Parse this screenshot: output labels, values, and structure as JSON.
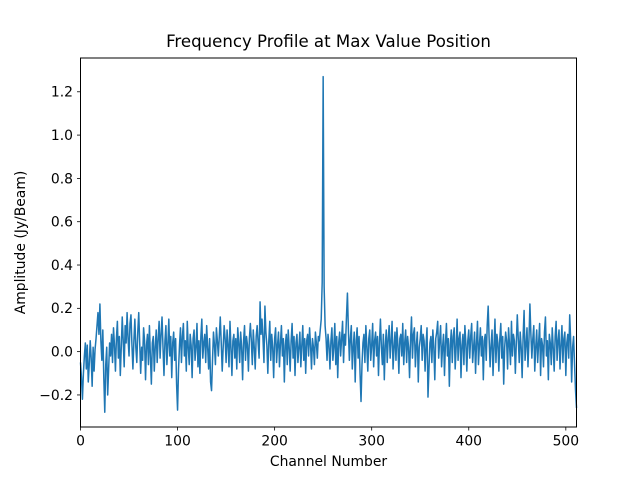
{
  "figure": {
    "background": "#ffffff",
    "spine_color": "#000000",
    "text_color": "#000000"
  },
  "chart_data": {
    "type": "line",
    "title": "Frequency Profile at Max Value Position",
    "xlabel": "Channel Number",
    "ylabel": "Amplitude (Jy/Beam)",
    "xlim": [
      0,
      511
    ],
    "ylim": [
      -0.348,
      1.356
    ],
    "xticks": [
      0,
      100,
      200,
      300,
      400,
      500
    ],
    "xtick_labels": [
      "0",
      "100",
      "200",
      "300",
      "400",
      "500"
    ],
    "yticks": [
      -0.2,
      0.0,
      0.2,
      0.4,
      0.6,
      0.8,
      1.0,
      1.2
    ],
    "ytick_labels": [
      "−0.2",
      "0.0",
      "0.2",
      "0.4",
      "0.6",
      "0.8",
      "1.0",
      "1.2"
    ],
    "grid": false,
    "legend": null,
    "line_color": "#1f77b4",
    "line_width": 1.5,
    "x_start": 0,
    "x_step": 1,
    "peak": {
      "x": 250,
      "y": 1.27
    },
    "values": [
      -0.05,
      -0.12,
      -0.22,
      -0.1,
      -0.02,
      0.04,
      -0.08,
      0.03,
      -0.14,
      -0.06,
      0.05,
      -0.03,
      -0.16,
      0.02,
      -0.09,
      0.01,
      0.06,
      0.12,
      0.18,
      0.08,
      0.22,
      0.05,
      -0.04,
      0.1,
      -0.12,
      -0.28,
      -0.06,
      0.02,
      -0.2,
      -0.08,
      0.04,
      -0.02,
      0.08,
      -0.05,
      0.11,
      0.03,
      -0.09,
      0.06,
      0.14,
      -0.03,
      0.07,
      -0.11,
      0.02,
      0.16,
      0.05,
      -0.07,
      0.12,
      0.04,
      0.18,
      0.06,
      -0.02,
      0.13,
      0.17,
      0.03,
      -0.08,
      0.05,
      0.15,
      0.02,
      -0.05,
      0.09,
      0.18,
      0.04,
      -0.1,
      0.02,
      -0.04,
      0.11,
      0.05,
      -0.13,
      0.03,
      0.08,
      -0.06,
      0.12,
      -0.02,
      -0.15,
      0.04,
      0.07,
      -0.09,
      0.02,
      0.1,
      -0.05,
      0.06,
      0.14,
      -0.03,
      0.08,
      0.16,
      0.02,
      -0.11,
      0.05,
      0.12,
      -0.06,
      0.03,
      0.15,
      -0.02,
      0.07,
      -0.12,
      0.04,
      0.09,
      -0.04,
      0.06,
      -0.15,
      -0.27,
      -0.08,
      0.03,
      0.11,
      -0.05,
      0.07,
      0.13,
      -0.02,
      0.05,
      -0.09,
      0.14,
      0.02,
      -0.06,
      0.08,
      0.03,
      -0.12,
      0.06,
      0.1,
      -0.04,
      0.02,
      0.13,
      -0.07,
      0.05,
      -0.1,
      0.07,
      0.15,
      -0.03,
      0.04,
      0.08,
      -0.05,
      0.12,
      0.02,
      -0.08,
      0.06,
      -0.14,
      -0.18,
      -0.04,
      0.09,
      0.03,
      -0.06,
      0.11,
      0.05,
      -0.02,
      0.07,
      0.16,
      0.04,
      -0.09,
      0.02,
      0.12,
      0.06,
      -0.05,
      0.1,
      0.03,
      -0.07,
      0.14,
      0.02,
      -0.11,
      0.05,
      0.08,
      -0.03,
      0.06,
      -0.08,
      0.11,
      0.04,
      -0.05,
      0.09,
      0.02,
      -0.13,
      0.05,
      0.12,
      -0.04,
      0.07,
      0.03,
      -0.09,
      0.06,
      0.13,
      0.05,
      -0.06,
      0.1,
      0.02,
      -0.08,
      0.07,
      0.12,
      0.04,
      -0.03,
      0.23,
      0.08,
      0.15,
      0.06,
      -0.05,
      0.21,
      0.09,
      0.03,
      -0.1,
      0.05,
      0.14,
      -0.04,
      0.08,
      0.02,
      -0.12,
      0.06,
      0.11,
      -0.05,
      0.03,
      0.09,
      -0.07,
      0.04,
      0.12,
      -0.02,
      0.06,
      -0.14,
      0.03,
      0.08,
      -0.06,
      0.1,
      0.02,
      -0.09,
      0.05,
      0.13,
      -0.03,
      0.07,
      -0.11,
      0.04,
      0.08,
      -0.05,
      0.02,
      0.09,
      -0.07,
      0.03,
      0.12,
      -0.04,
      0.06,
      -0.1,
      0.05,
      0.08,
      -0.02,
      0.11,
      0.03,
      -0.08,
      0.06,
      0.02,
      -0.06,
      0.09,
      0.04,
      -0.03,
      0.07,
      0.05,
      0.1,
      0.15,
      0.32,
      1.27,
      0.3,
      0.12,
      0.06,
      -0.04,
      0.08,
      0.03,
      -0.08,
      0.05,
      0.11,
      -0.04,
      0.02,
      0.13,
      -0.06,
      0.07,
      -0.12,
      0.04,
      0.09,
      -0.02,
      0.06,
      0.14,
      -0.05,
      0.08,
      0.03,
      0.16,
      0.27,
      0.1,
      -0.04,
      0.06,
      0.12,
      -0.08,
      0.02,
      0.09,
      -0.14,
      0.05,
      0.11,
      -0.03,
      0.07,
      -0.1,
      -0.23,
      -0.06,
      0.04,
      0.08,
      -0.05,
      0.12,
      0.02,
      -0.09,
      0.06,
      0.1,
      -0.04,
      0.03,
      0.13,
      -0.07,
      0.05,
      0.09,
      -0.02,
      0.07,
      -0.11,
      0.04,
      0.15,
      0.02,
      -0.06,
      0.08,
      -0.13,
      0.03,
      0.1,
      -0.05,
      0.06,
      0.12,
      -0.03,
      0.05,
      0.14,
      -0.08,
      0.02,
      0.09,
      -0.04,
      0.11,
      0.03,
      -0.1,
      0.06,
      0.08,
      -0.02,
      0.13,
      -0.06,
      0.04,
      0.1,
      -0.05,
      0.07,
      0.02,
      -0.12,
      0.05,
      0.16,
      -0.03,
      0.08,
      0.11,
      -0.07,
      0.03,
      0.09,
      -0.14,
      0.02,
      0.06,
      0.12,
      -0.04,
      0.08,
      0.05,
      -0.09,
      0.03,
      0.11,
      -0.21,
      -0.08,
      0.04,
      0.07,
      -0.05,
      0.1,
      0.02,
      -0.13,
      0.06,
      0.09,
      0.14,
      -0.03,
      0.05,
      0.12,
      -0.07,
      0.02,
      0.08,
      -0.11,
      0.04,
      0.13,
      -0.02,
      0.06,
      -0.16,
      0.03,
      0.1,
      -0.05,
      0.07,
      0.11,
      -0.08,
      0.02,
      0.15,
      -0.04,
      0.06,
      0.09,
      -0.12,
      0.03,
      0.08,
      -0.06,
      0.12,
      0.04,
      -0.09,
      0.05,
      0.1,
      -0.03,
      0.07,
      0.13,
      -0.05,
      0.02,
      0.09,
      -0.1,
      0.04,
      0.14,
      -0.06,
      0.03,
      0.11,
      -0.02,
      0.07,
      -0.13,
      0.05,
      0.08,
      -0.04,
      0.12,
      0.21,
      0.06,
      -0.07,
      0.03,
      0.1,
      -0.11,
      0.02,
      0.15,
      -0.05,
      0.08,
      0.04,
      -0.09,
      0.06,
      0.13,
      -0.03,
      0.07,
      -0.15,
      0.02,
      0.09,
      0.05,
      -0.08,
      0.11,
      0.03,
      -0.06,
      0.14,
      -0.02,
      0.08,
      0.05,
      -0.1,
      0.04,
      0.17,
      0.06,
      -0.05,
      0.09,
      0.02,
      -0.12,
      0.07,
      0.19,
      -0.04,
      0.03,
      0.11,
      -0.07,
      0.05,
      0.22,
      0.08,
      -0.03,
      0.06,
      0.12,
      -0.09,
      0.02,
      0.1,
      -0.05,
      0.04,
      0.13,
      -0.11,
      0.06,
      0.03,
      -0.07,
      0.09,
      0.16,
      -0.02,
      0.05,
      -0.13,
      0.08,
      0.04,
      -0.06,
      0.11,
      0.02,
      -0.09,
      0.07,
      0.14,
      -0.04,
      0.05,
      0.1,
      -0.08,
      0.03,
      0.12,
      -0.05,
      0.06,
      0.09,
      -0.11,
      0.04,
      0.08,
      -0.03,
      0.17,
      0.05,
      -0.14,
      0.02,
      0.07,
      -0.06,
      -0.18,
      -0.26
    ]
  }
}
